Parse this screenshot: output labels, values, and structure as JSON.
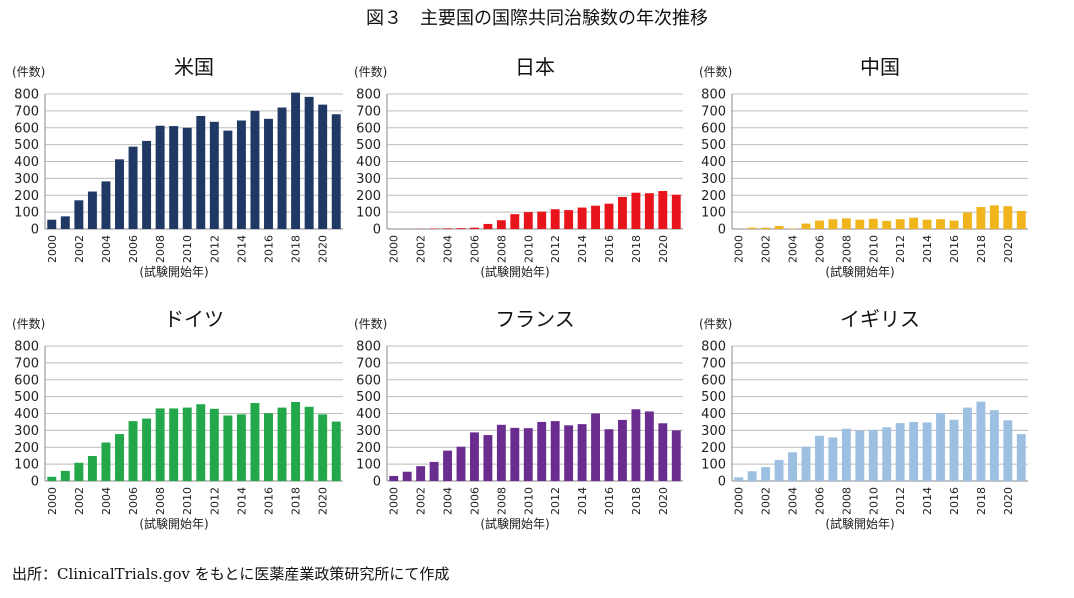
{
  "figure_title": "図３　主要国の国際共同治験数の年次推移",
  "source_note": "出所：ClinicalTrials.gov をもとに医薬産業政策研究所にて作成",
  "chart_data": [
    {
      "type": "bar",
      "title": "米国",
      "ylabel": "(件数)",
      "xlabel": "(試験開始年)",
      "ylim": [
        0,
        800
      ],
      "yticks": [
        0,
        100,
        200,
        300,
        400,
        500,
        600,
        700,
        800
      ],
      "grid": true,
      "color": "#1f3864",
      "categories": [
        2000,
        2001,
        2002,
        2003,
        2004,
        2005,
        2006,
        2007,
        2008,
        2009,
        2010,
        2011,
        2012,
        2013,
        2014,
        2015,
        2016,
        2017,
        2018,
        2019,
        2020,
        2021
      ],
      "xtick_labels": [
        "2000",
        "2002",
        "2004",
        "2006",
        "2008",
        "2010",
        "2012",
        "2014",
        "2016",
        "2018",
        "2020"
      ],
      "values": [
        55,
        75,
        170,
        222,
        282,
        413,
        488,
        522,
        612,
        610,
        600,
        670,
        635,
        583,
        643,
        700,
        653,
        720,
        808,
        783,
        737,
        680
      ]
    },
    {
      "type": "bar",
      "title": "日本",
      "ylabel": "(件数)",
      "xlabel": "(試験開始年)",
      "ylim": [
        0,
        800
      ],
      "yticks": [
        0,
        100,
        200,
        300,
        400,
        500,
        600,
        700,
        800
      ],
      "grid": true,
      "color": "#e8141c",
      "categories": [
        2000,
        2001,
        2002,
        2003,
        2004,
        2005,
        2006,
        2007,
        2008,
        2009,
        2010,
        2011,
        2012,
        2013,
        2014,
        2015,
        2016,
        2017,
        2018,
        2019,
        2020,
        2021
      ],
      "xtick_labels": [
        "2000",
        "2002",
        "2004",
        "2006",
        "2008",
        "2010",
        "2012",
        "2014",
        "2016",
        "2018",
        "2020"
      ],
      "values": [
        0,
        0,
        1,
        3,
        4,
        5,
        8,
        30,
        52,
        88,
        100,
        103,
        117,
        112,
        127,
        138,
        150,
        190,
        215,
        212,
        225,
        203
      ]
    },
    {
      "type": "bar",
      "title": "中国",
      "ylabel": "(件数)",
      "xlabel": "(試験開始年)",
      "ylim": [
        0,
        800
      ],
      "yticks": [
        0,
        100,
        200,
        300,
        400,
        500,
        600,
        700,
        800
      ],
      "grid": true,
      "color": "#f0b41c",
      "categories": [
        2000,
        2001,
        2002,
        2003,
        2004,
        2005,
        2006,
        2007,
        2008,
        2009,
        2010,
        2011,
        2012,
        2013,
        2014,
        2015,
        2016,
        2017,
        2018,
        2019,
        2020,
        2021
      ],
      "xtick_labels": [
        "2000",
        "2002",
        "2004",
        "2006",
        "2008",
        "2010",
        "2012",
        "2014",
        "2016",
        "2018",
        "2020"
      ],
      "values": [
        0,
        8,
        8,
        18,
        3,
        32,
        50,
        58,
        63,
        55,
        60,
        48,
        58,
        67,
        55,
        58,
        50,
        98,
        130,
        140,
        135,
        107
      ]
    },
    {
      "type": "bar",
      "title": "ドイツ",
      "ylabel": "(件数)",
      "xlabel": "(試験開始年)",
      "ylim": [
        0,
        800
      ],
      "yticks": [
        0,
        100,
        200,
        300,
        400,
        500,
        600,
        700,
        800
      ],
      "grid": true,
      "color": "#22a84a",
      "categories": [
        2000,
        2001,
        2002,
        2003,
        2004,
        2005,
        2006,
        2007,
        2008,
        2009,
        2010,
        2011,
        2012,
        2013,
        2014,
        2015,
        2016,
        2017,
        2018,
        2019,
        2020,
        2021
      ],
      "xtick_labels": [
        "2000",
        "2002",
        "2004",
        "2006",
        "2008",
        "2010",
        "2012",
        "2014",
        "2016",
        "2018",
        "2020"
      ],
      "values": [
        25,
        60,
        108,
        148,
        228,
        278,
        355,
        370,
        430,
        430,
        435,
        455,
        428,
        388,
        395,
        462,
        402,
        435,
        468,
        440,
        395,
        352
      ]
    },
    {
      "type": "bar",
      "title": "フランス",
      "ylabel": "(件数)",
      "xlabel": "(試験開始年)",
      "ylim": [
        0,
        800
      ],
      "yticks": [
        0,
        100,
        200,
        300,
        400,
        500,
        600,
        700,
        800
      ],
      "grid": true,
      "color": "#6a2c8e",
      "categories": [
        2000,
        2001,
        2002,
        2003,
        2004,
        2005,
        2006,
        2007,
        2008,
        2009,
        2010,
        2011,
        2012,
        2013,
        2014,
        2015,
        2016,
        2017,
        2018,
        2019,
        2020,
        2021
      ],
      "xtick_labels": [
        "2000",
        "2002",
        "2004",
        "2006",
        "2008",
        "2010",
        "2012",
        "2014",
        "2016",
        "2018",
        "2020"
      ],
      "values": [
        30,
        55,
        88,
        113,
        180,
        203,
        288,
        272,
        333,
        315,
        313,
        350,
        355,
        330,
        337,
        400,
        307,
        362,
        425,
        412,
        342,
        300
      ]
    },
    {
      "type": "bar",
      "title": "イギリス",
      "ylabel": "(件数)",
      "xlabel": "(試験開始年)",
      "ylim": [
        0,
        800
      ],
      "yticks": [
        0,
        100,
        200,
        300,
        400,
        500,
        600,
        700,
        800
      ],
      "grid": true,
      "color": "#9dc0e2",
      "categories": [
        2000,
        2001,
        2002,
        2003,
        2004,
        2005,
        2006,
        2007,
        2008,
        2009,
        2010,
        2011,
        2012,
        2013,
        2014,
        2015,
        2016,
        2017,
        2018,
        2019,
        2020,
        2021
      ],
      "xtick_labels": [
        "2000",
        "2002",
        "2004",
        "2006",
        "2008",
        "2010",
        "2012",
        "2014",
        "2016",
        "2018",
        "2020"
      ],
      "values": [
        22,
        58,
        82,
        125,
        170,
        203,
        268,
        258,
        310,
        298,
        303,
        318,
        343,
        350,
        347,
        403,
        363,
        435,
        470,
        420,
        360,
        278
      ]
    }
  ]
}
